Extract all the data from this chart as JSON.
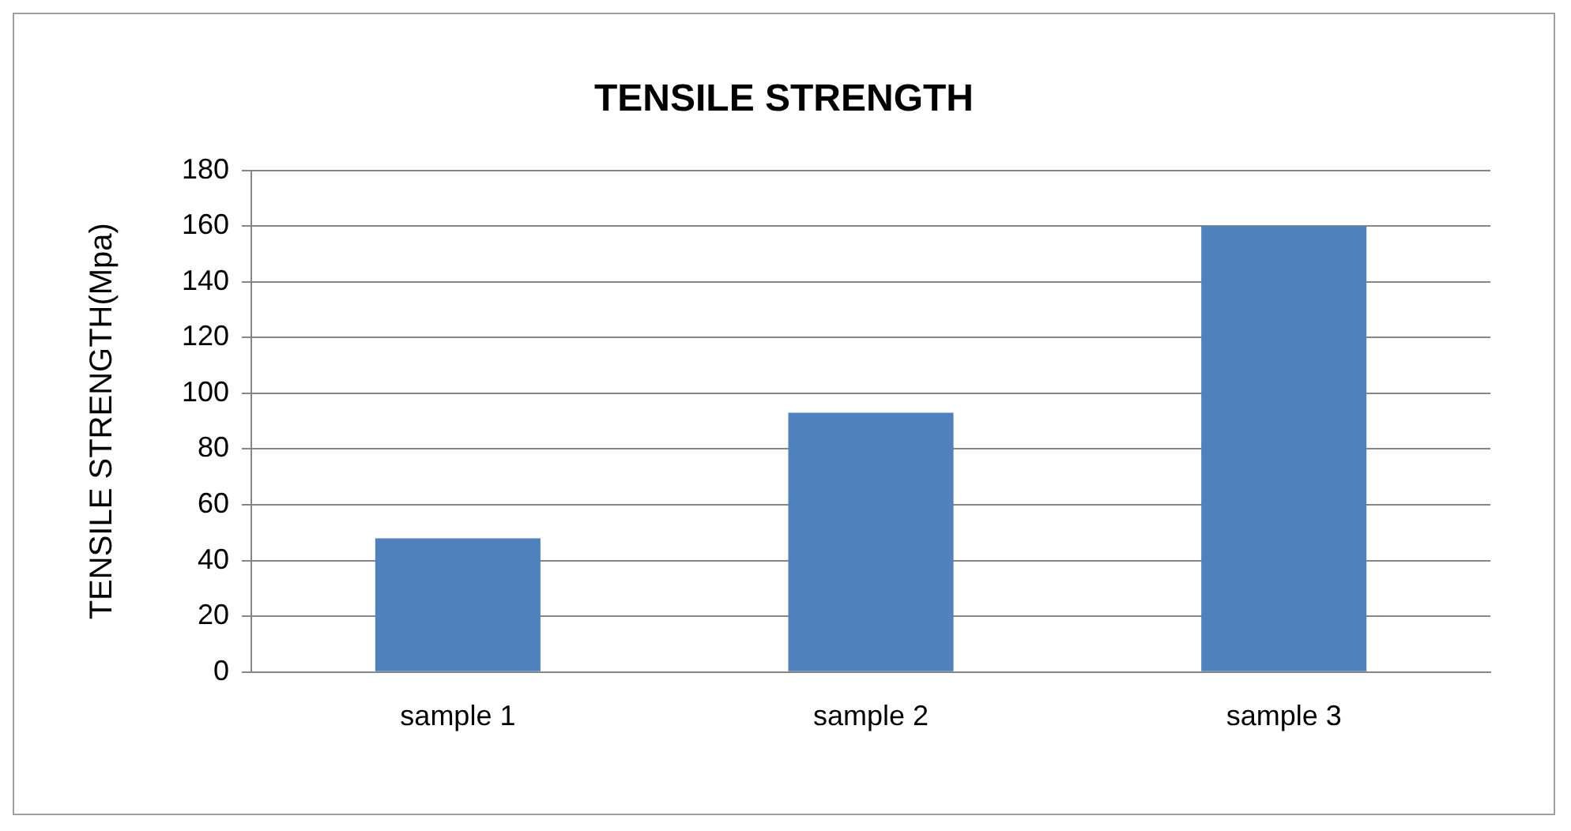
{
  "chart_data": {
    "type": "bar",
    "title": "TENSILE STRENGTH",
    "ylabel": "TENSILE STRENGTH(Mpa)",
    "categories": [
      "sample 1",
      "sample 2",
      "sample 3"
    ],
    "values": [
      48,
      93,
      160
    ],
    "color": "#4f81bd",
    "ylim": [
      0,
      180
    ],
    "yticks": [
      0,
      20,
      40,
      60,
      80,
      100,
      120,
      140,
      160,
      180
    ],
    "grid": "y",
    "legend": false
  }
}
